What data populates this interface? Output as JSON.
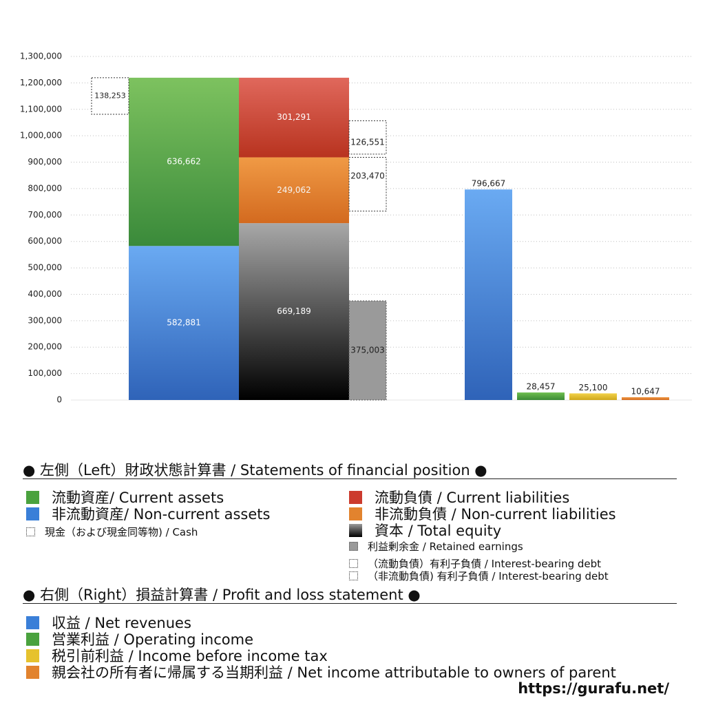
{
  "chart_data": {
    "type": "bar",
    "ylim": [
      0,
      1300000
    ],
    "yticks": [
      0,
      100000,
      200000,
      300000,
      400000,
      500000,
      600000,
      700000,
      800000,
      900000,
      1000000,
      1100000,
      1200000,
      1300000
    ],
    "ytick_labels": [
      "0",
      "100,000",
      "200,000",
      "300,000",
      "400,000",
      "500,000",
      "600,000",
      "700,000",
      "800,000",
      "900,000",
      "1,000,000",
      "1,100,000",
      "1,200,000",
      "1,300,000"
    ],
    "grid": true,
    "left_statement": {
      "assets": [
        {
          "key": "non_current_assets",
          "value": 582881,
          "label": "582,881",
          "color_top": "#6aaaf2",
          "color_bottom": "#2f63b8"
        },
        {
          "key": "current_assets",
          "value": 636662,
          "label": "636,662",
          "color_top": "#7dc25f",
          "color_bottom": "#3a8a3a"
        }
      ],
      "cash": {
        "value": 138253,
        "label": "138,253"
      },
      "liabilities_equity": [
        {
          "key": "total_equity",
          "value": 669189,
          "label": "669,189",
          "color_top": "#a8a8a8",
          "color_bottom": "#000000"
        },
        {
          "key": "non_current_liabilities",
          "value": 249062,
          "label": "249,062",
          "color_top": "#f09a45",
          "color_bottom": "#d36a1f"
        },
        {
          "key": "current_liabilities",
          "value": 301291,
          "label": "301,291",
          "color_top": "#e0685c",
          "color_bottom": "#b8331f"
        }
      ],
      "retained_earnings": {
        "value": 375003,
        "label": "375,003",
        "color": "#9a9a9a"
      },
      "non_current_interest_bearing_debt": {
        "value": 203470,
        "label": "203,470"
      },
      "current_interest_bearing_debt": {
        "value": 126551,
        "label": "126,551"
      }
    },
    "right_statement": [
      {
        "key": "net_revenues",
        "value": 796667,
        "label": "796,667",
        "color_top": "#6aaaf2",
        "color_bottom": "#2f63b8"
      },
      {
        "key": "operating_income",
        "value": 28457,
        "label": "28,457",
        "color_top": "#6fbf4f",
        "color_bottom": "#3b8a35"
      },
      {
        "key": "income_before_tax",
        "value": 25100,
        "label": "25,100",
        "color_top": "#f2d24a",
        "color_bottom": "#cfa81c"
      },
      {
        "key": "net_income_parent",
        "value": 10647,
        "label": "10,647",
        "color_top": "#f09a45",
        "color_bottom": "#d36a1f"
      }
    ]
  },
  "legend": {
    "left_header": "● 左側（Left）財政状態計算書 / Statements of financial position ●",
    "current_assets": "流動資産/ Current assets",
    "non_current_assets": "非流動資産/ Non-current assets",
    "cash": "現金（および現金同等物) / Cash",
    "current_liabilities": "流動負債 /  Current liabilities",
    "non_current_liabilities": "非流動負債 / Non-current liabilities",
    "total_equity": "資本 / Total equity",
    "retained_earnings": "利益剰余金 / Retained earnings",
    "current_debt": "（流動負債）有利子負債 / Interest-bearing debt",
    "non_current_debt": "（非流動負債) 有利子負債 / Interest-bearing debt",
    "right_header": "● 右側（Right）損益計算書 / Profit and loss statement ●",
    "net_revenues": "収益 / Net revenues",
    "operating_income": "営業利益 / Operating income",
    "income_before_tax": "税引前利益 / Income before income tax",
    "net_income": "親会社の所有者に帰属する当期利益 / Net income attributable to owners of parent"
  },
  "colors": {
    "green": "#4aa23e",
    "blue": "#3a7fd8",
    "red": "#cc3b2e",
    "orange": "#e2832e",
    "black": "#222222",
    "gray": "#9a9a9a",
    "yellow": "#e6c22e"
  },
  "footer": {
    "url": "https://gurafu.net/"
  }
}
